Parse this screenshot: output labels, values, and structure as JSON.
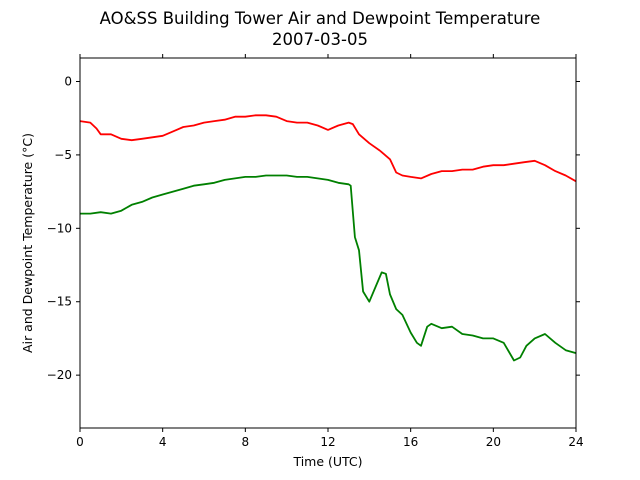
{
  "chart_data": {
    "type": "line",
    "title": "AO&SS Building Tower Air and Dewpoint Temperature",
    "subtitle": "2007-03-05",
    "xlabel": "Time (UTC)",
    "ylabel": "Air and Dewpoint Temperature (°C)",
    "xlim": [
      0,
      24
    ],
    "ylim": [
      -23.6,
      1.6
    ],
    "xticks": [
      0,
      4,
      8,
      12,
      16,
      20,
      24
    ],
    "yticks": [
      0,
      -5,
      -10,
      -15,
      -20
    ],
    "grid": false,
    "legend": "none",
    "series": [
      {
        "color": "#ff0000",
        "x": [
          0,
          0.5,
          0.8,
          1.0,
          1.5,
          2.0,
          2.5,
          3.0,
          3.5,
          4.0,
          4.5,
          5.0,
          5.5,
          6.0,
          6.5,
          7.0,
          7.5,
          8.0,
          8.5,
          9.0,
          9.5,
          10.0,
          10.5,
          11.0,
          11.5,
          12.0,
          12.5,
          13.0,
          13.2,
          13.5,
          14.0,
          14.5,
          15.0,
          15.3,
          15.6,
          16.0,
          16.5,
          17.0,
          17.5,
          18.0,
          18.5,
          19.0,
          19.5,
          20.0,
          20.5,
          21.0,
          21.5,
          22.0,
          22.5,
          23.0,
          23.5,
          24.0
        ],
        "y": [
          -2.7,
          -2.8,
          -3.2,
          -3.6,
          -3.6,
          -3.9,
          -4.0,
          -3.9,
          -3.8,
          -3.7,
          -3.4,
          -3.1,
          -3.0,
          -2.8,
          -2.7,
          -2.6,
          -2.4,
          -2.4,
          -2.3,
          -2.3,
          -2.4,
          -2.7,
          -2.8,
          -2.8,
          -3.0,
          -3.3,
          -3.0,
          -2.8,
          -2.9,
          -3.6,
          -4.2,
          -4.7,
          -5.3,
          -6.2,
          -6.4,
          -6.5,
          -6.6,
          -6.3,
          -6.1,
          -6.1,
          -6.0,
          -6.0,
          -5.8,
          -5.7,
          -5.7,
          -5.6,
          -5.5,
          -5.4,
          -5.7,
          -6.1,
          -6.4,
          -6.8
        ]
      },
      {
        "color": "#008000",
        "x": [
          0,
          0.5,
          1.0,
          1.5,
          2.0,
          2.5,
          3.0,
          3.5,
          4.0,
          4.5,
          5.0,
          5.5,
          6.0,
          6.5,
          7.0,
          7.5,
          8.0,
          8.5,
          9.0,
          9.5,
          10.0,
          10.5,
          11.0,
          11.5,
          12.0,
          12.5,
          13.0,
          13.1,
          13.3,
          13.5,
          13.7,
          14.0,
          14.3,
          14.6,
          14.8,
          15.0,
          15.3,
          15.6,
          16.0,
          16.3,
          16.5,
          16.8,
          17.0,
          17.5,
          18.0,
          18.5,
          19.0,
          19.5,
          20.0,
          20.5,
          21.0,
          21.3,
          21.6,
          22.0,
          22.5,
          23.0,
          23.5,
          24.0
        ],
        "y": [
          -9.0,
          -9.0,
          -8.9,
          -9.0,
          -8.8,
          -8.4,
          -8.2,
          -7.9,
          -7.7,
          -7.5,
          -7.3,
          -7.1,
          -7.0,
          -6.9,
          -6.7,
          -6.6,
          -6.5,
          -6.5,
          -6.4,
          -6.4,
          -6.4,
          -6.5,
          -6.5,
          -6.6,
          -6.7,
          -6.9,
          -7.0,
          -7.1,
          -10.6,
          -11.5,
          -14.3,
          -15.0,
          -14.0,
          -13.0,
          -13.1,
          -14.5,
          -15.5,
          -15.9,
          -17.1,
          -17.8,
          -18.0,
          -16.7,
          -16.5,
          -16.8,
          -16.7,
          -17.2,
          -17.3,
          -17.5,
          -17.5,
          -17.8,
          -19.0,
          -18.8,
          -18.0,
          -17.5,
          -17.2,
          -17.8,
          -18.3,
          -18.5
        ]
      }
    ]
  }
}
